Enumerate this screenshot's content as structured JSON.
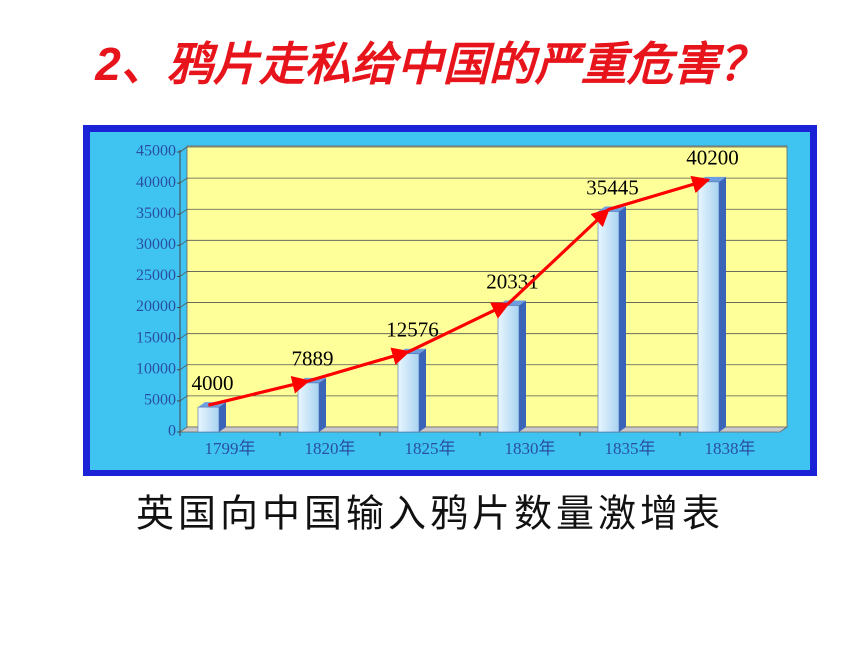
{
  "chart_data": {
    "type": "bar",
    "title": "2、鸦片走私给中国的严重危害？",
    "subtitle": "英国向中国输入鸦片数量激增表",
    "categories": [
      "1799年",
      "1820年",
      "1825年",
      "1830年",
      "1835年",
      "1838年"
    ],
    "values": [
      4000,
      7889,
      12576,
      20331,
      35445,
      40200
    ],
    "color": "#cfe9fb",
    "line_color": "#ff0000",
    "ylim": [
      0,
      45000
    ],
    "yticks": [
      0,
      5000,
      10000,
      15000,
      20000,
      25000,
      30000,
      35000,
      40000,
      45000
    ],
    "grid": true
  }
}
